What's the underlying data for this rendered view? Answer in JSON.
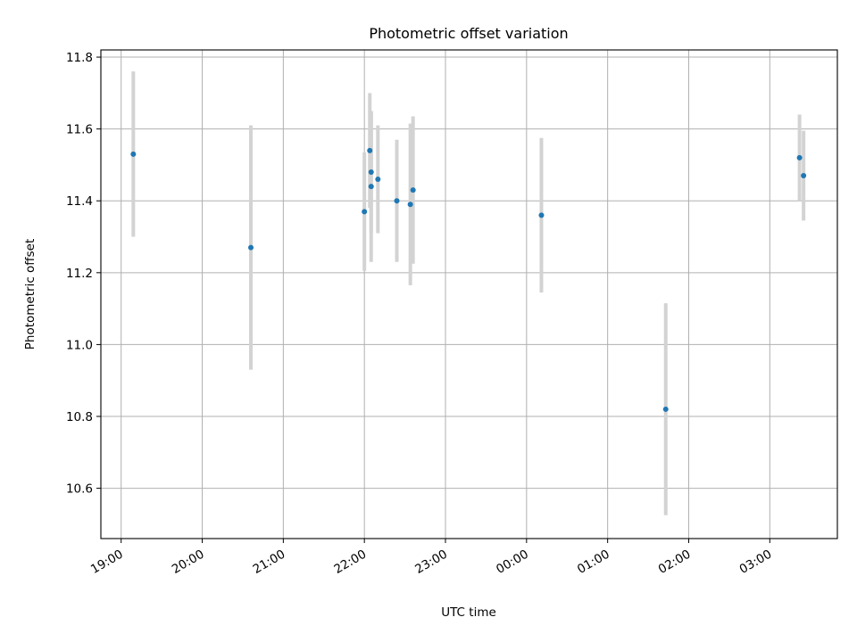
{
  "chart_data": {
    "type": "scatter",
    "title": "Photometric offset variation",
    "xlabel": "UTC time",
    "ylabel": "Photometric offset",
    "x_tick_labels": [
      "19:00",
      "20:00",
      "21:00",
      "22:00",
      "23:00",
      "00:00",
      "01:00",
      "02:00",
      "03:00"
    ],
    "y_ticks": [
      10.6,
      10.8,
      11.0,
      11.2,
      11.4,
      11.6,
      11.8
    ],
    "y_tick_labels": [
      "10.6",
      "10.8",
      "11.0",
      "11.2",
      "11.4",
      "11.6",
      "11.8"
    ],
    "xlim": [
      "18:45",
      "03:50"
    ],
    "ylim": [
      10.46,
      11.82
    ],
    "grid": true,
    "point_color": "#1f77b4",
    "errorbar_color": "#d3d3d3",
    "points": [
      {
        "time": "19:09",
        "y": 11.53,
        "err": 0.23
      },
      {
        "time": "20:36",
        "y": 11.27,
        "err": 0.34
      },
      {
        "time": "22:00",
        "y": 11.37,
        "err": 0.165
      },
      {
        "time": "22:04",
        "y": 11.54,
        "err": 0.16
      },
      {
        "time": "22:05",
        "y": 11.48,
        "err": 0.17
      },
      {
        "time": "22:05",
        "y": 11.44,
        "err": 0.21
      },
      {
        "time": "22:10",
        "y": 11.46,
        "err": 0.15
      },
      {
        "time": "22:24",
        "y": 11.4,
        "err": 0.17
      },
      {
        "time": "22:34",
        "y": 11.39,
        "err": 0.225
      },
      {
        "time": "22:36",
        "y": 11.43,
        "err": 0.205
      },
      {
        "time": "00:11",
        "y": 11.36,
        "err": 0.215
      },
      {
        "time": "01:43",
        "y": 10.82,
        "err": 0.295
      },
      {
        "time": "03:22",
        "y": 11.52,
        "err": 0.12
      },
      {
        "time": "03:25",
        "y": 11.47,
        "err": 0.125
      }
    ]
  }
}
